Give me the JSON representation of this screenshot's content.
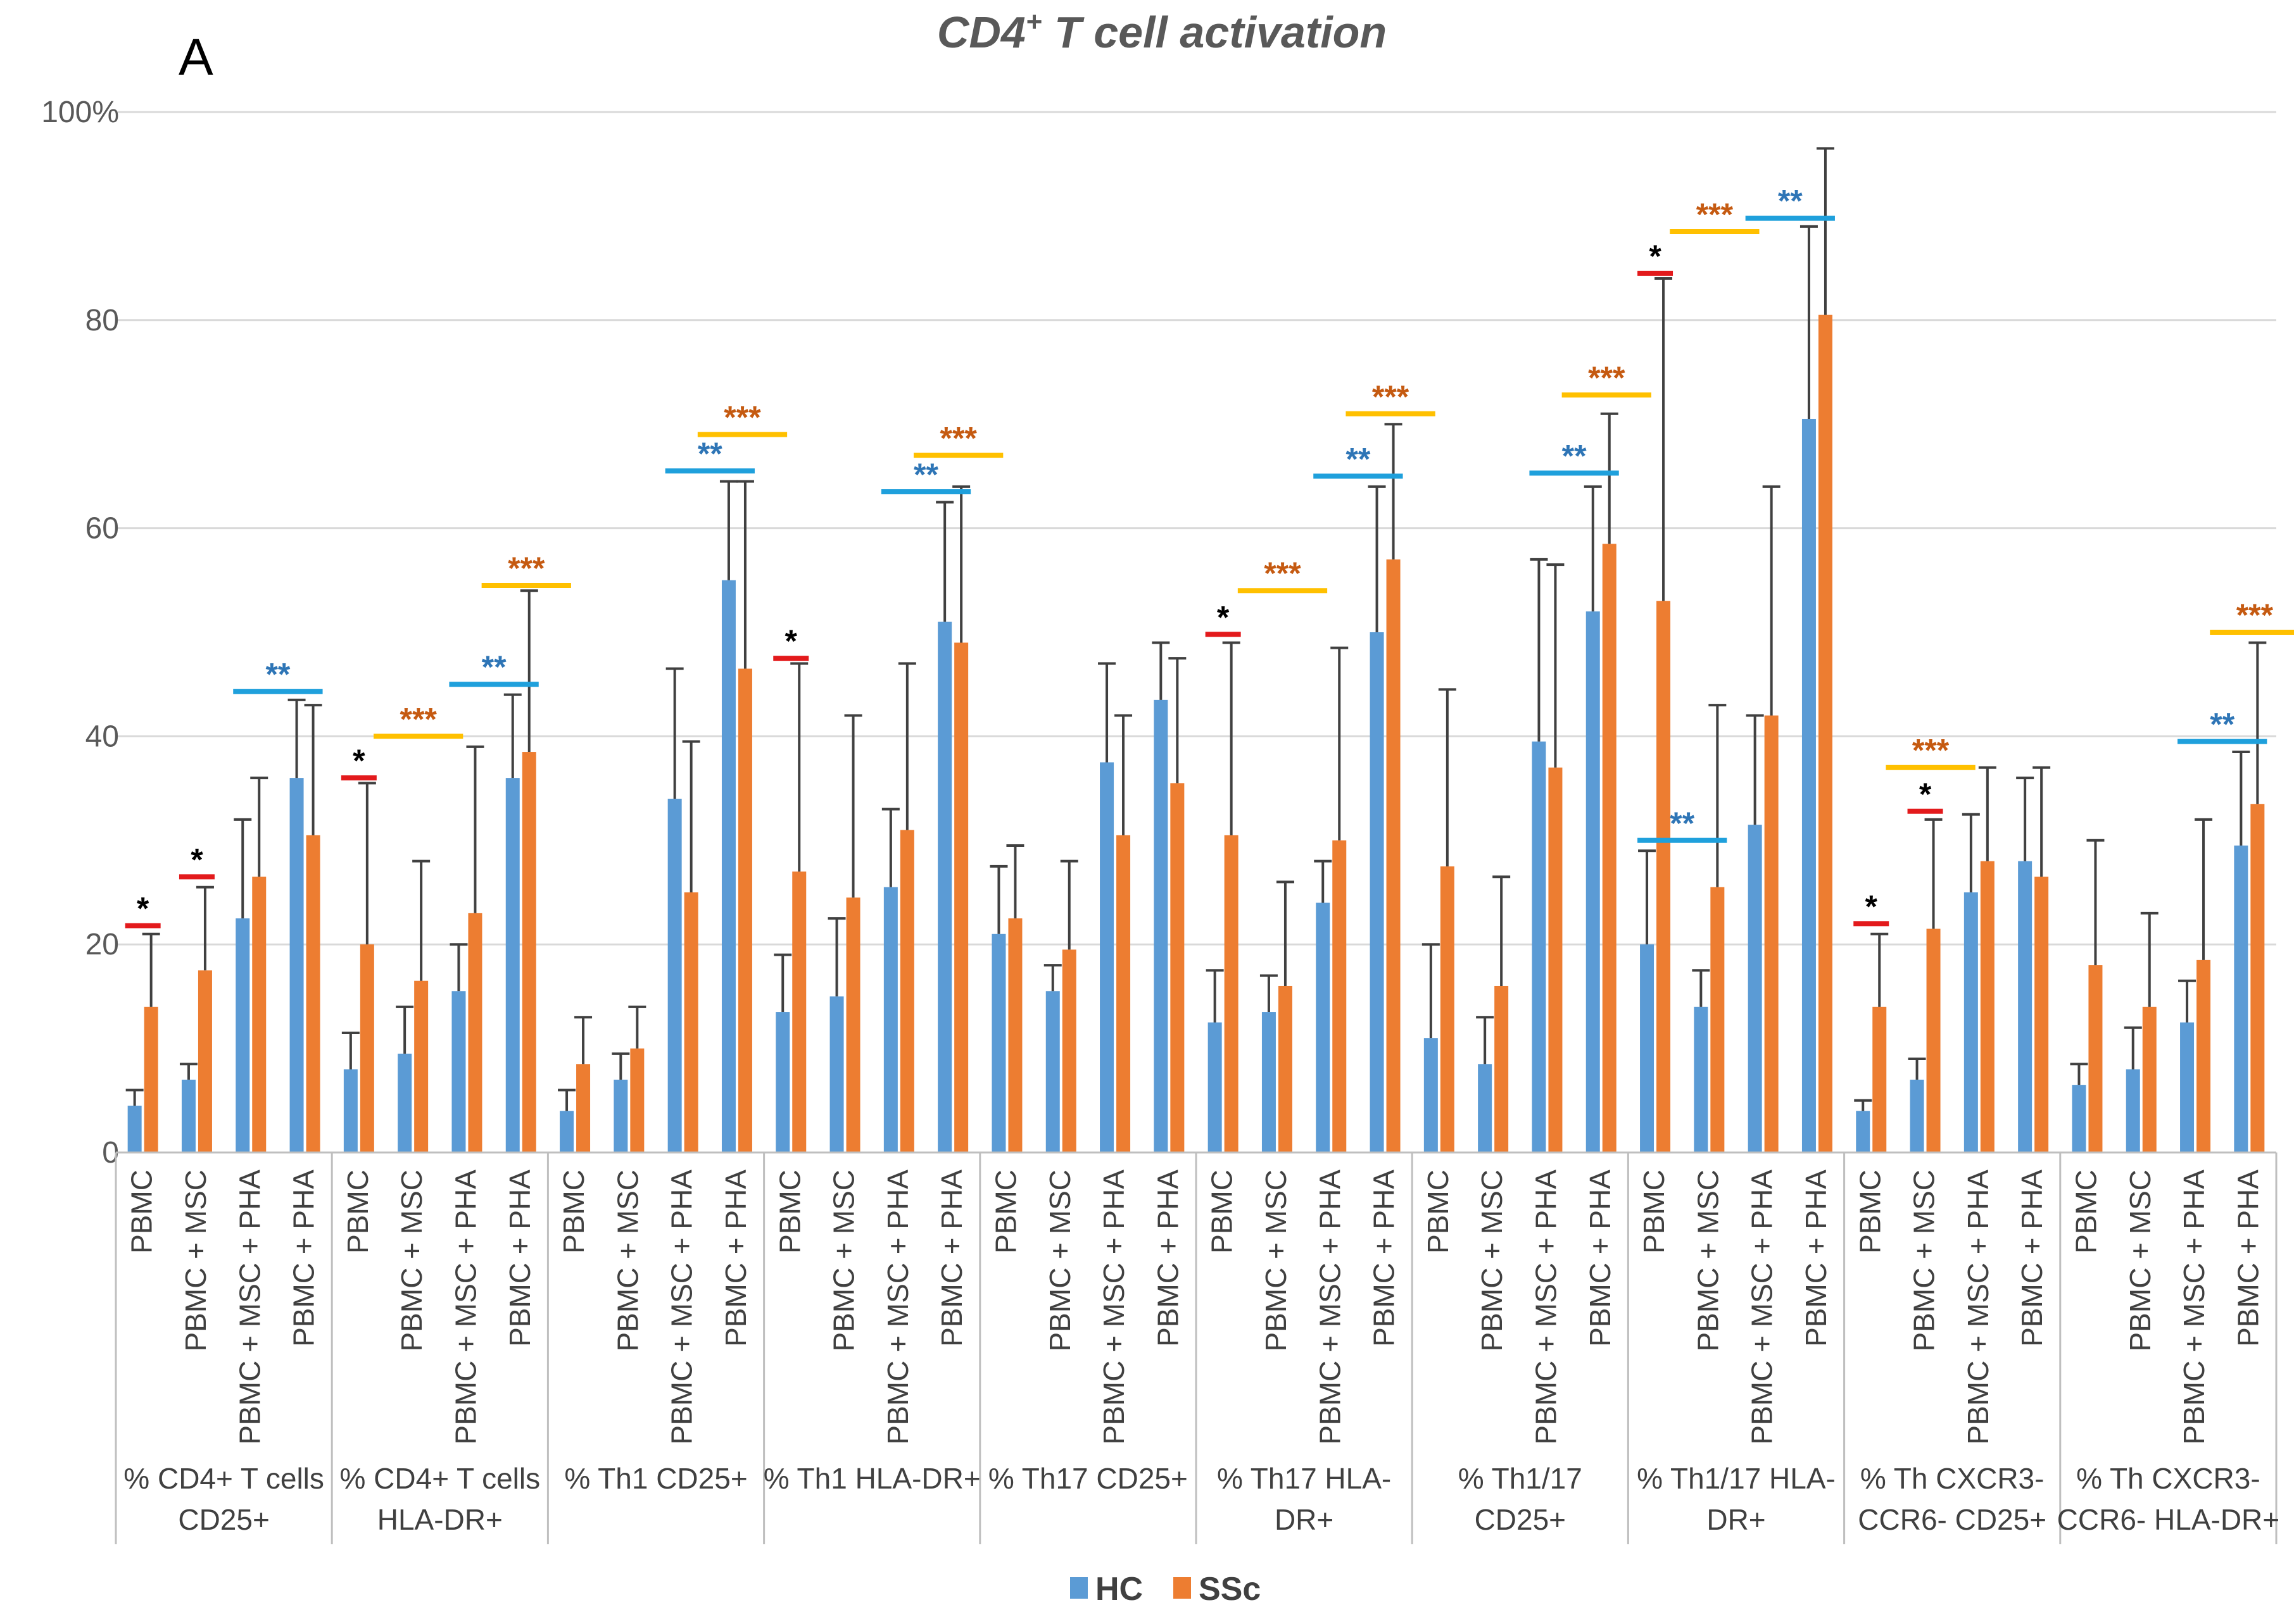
{
  "chart_data": {
    "type": "bar",
    "title": "CD4",
    "title_sup": "+",
    "title_rest": " T cell activation",
    "panel_label": "A",
    "ylim": [
      0,
      100
    ],
    "yticks": [
      {
        "value": 0,
        "label": "0"
      },
      {
        "value": 20,
        "label": "20"
      },
      {
        "value": 40,
        "label": "40"
      },
      {
        "value": 60,
        "label": "60"
      },
      {
        "value": 80,
        "label": "80"
      },
      {
        "value": 100,
        "label": "100%"
      }
    ],
    "series_names": [
      "HC",
      "SSc"
    ],
    "colors": {
      "HC": "#5B9BD5",
      "SSc": "#ED7D31",
      "error": "#404040",
      "grid": "#D9D9D9",
      "red": "#E31A1C",
      "yellow": "#FFC000",
      "blue": "#1FA0DC",
      "blue_star": "#2E75B6",
      "orange_star": "#C55A11",
      "black_star": "#000000"
    },
    "conditions": [
      "PBMC",
      "PBMC + MSC",
      "PBMC + MSC + PHA",
      "PBMC + PHA"
    ],
    "groups": [
      {
        "label": [
          "% CD4+ T cells",
          "CD25+"
        ],
        "hc": [
          4.5,
          7,
          22.5,
          36
        ],
        "hc_err": [
          6,
          8.5,
          32,
          43.5
        ],
        "ssc": [
          14,
          17.5,
          26.5,
          30.5
        ],
        "ssc_err": [
          21,
          25.5,
          36,
          43
        ]
      },
      {
        "label": [
          "% CD4+ T cells",
          "HLA-DR+"
        ],
        "hc": [
          8,
          9.5,
          15.5,
          36
        ],
        "hc_err": [
          11.5,
          14,
          20,
          44
        ],
        "ssc": [
          20,
          16.5,
          23,
          38.5
        ],
        "ssc_err": [
          35.5,
          28,
          39,
          54
        ]
      },
      {
        "label": [
          "% Th1 CD25+"
        ],
        "hc": [
          4,
          7,
          34,
          55
        ],
        "hc_err": [
          6,
          9.5,
          46.5,
          64.5
        ],
        "ssc": [
          8.5,
          10,
          25,
          46.5
        ],
        "ssc_err": [
          13,
          14,
          39.5,
          64.5
        ]
      },
      {
        "label": [
          "% Th1 HLA-DR+"
        ],
        "hc": [
          13.5,
          15,
          25.5,
          51
        ],
        "hc_err": [
          19,
          22.5,
          33,
          62.5
        ],
        "ssc": [
          27,
          24.5,
          31,
          49
        ],
        "ssc_err": [
          47,
          42,
          47,
          64
        ]
      },
      {
        "label": [
          "% Th17 CD25+"
        ],
        "hc": [
          21,
          15.5,
          37.5,
          43.5
        ],
        "hc_err": [
          27.5,
          18,
          47,
          49
        ],
        "ssc": [
          22.5,
          19.5,
          30.5,
          35.5
        ],
        "ssc_err": [
          29.5,
          28,
          42,
          47.5
        ]
      },
      {
        "label": [
          "% Th17 HLA-",
          "DR+"
        ],
        "hc": [
          12.5,
          13.5,
          24,
          50
        ],
        "hc_err": [
          17.5,
          17,
          28,
          64
        ],
        "ssc": [
          30.5,
          16,
          30,
          57
        ],
        "ssc_err": [
          49,
          26,
          48.5,
          70
        ]
      },
      {
        "label": [
          "% Th1/17",
          "CD25+"
        ],
        "hc": [
          11,
          8.5,
          39.5,
          52
        ],
        "hc_err": [
          20,
          13,
          57,
          64
        ],
        "ssc": [
          27.5,
          16,
          37,
          58.5
        ],
        "ssc_err": [
          44.5,
          26.5,
          56.5,
          71
        ]
      },
      {
        "label": [
          "% Th1/17 HLA-",
          "DR+"
        ],
        "hc": [
          20,
          14,
          31.5,
          70.5
        ],
        "hc_err": [
          29,
          17.5,
          42,
          89
        ],
        "ssc": [
          53,
          25.5,
          42,
          80.5
        ],
        "ssc_err": [
          84,
          43,
          64,
          96.5
        ]
      },
      {
        "label": [
          "% Th CXCR3-",
          "CCR6- CD25+"
        ],
        "hc": [
          4,
          7,
          25,
          28
        ],
        "hc_err": [
          5,
          9,
          32.5,
          36
        ],
        "ssc": [
          14,
          21.5,
          28,
          26.5
        ],
        "ssc_err": [
          21,
          32,
          37,
          37
        ]
      },
      {
        "label": [
          "% Th CXCR3-",
          "CCR6- HLA-DR+"
        ],
        "hc": [
          6.5,
          8,
          12.5,
          29.5
        ],
        "hc_err": [
          8.5,
          12,
          16.5,
          38.5
        ],
        "ssc": [
          18,
          14,
          18.5,
          33.5
        ],
        "ssc_err": [
          30,
          23,
          32,
          49
        ]
      }
    ],
    "annotations": [
      {
        "group": 0,
        "from": 0,
        "to": 0,
        "y": 21.8,
        "line": "red",
        "stars": "*",
        "star_color": "black_star"
      },
      {
        "group": 0,
        "from": 1,
        "to": 1,
        "y": 26.5,
        "line": "red",
        "stars": "*",
        "star_color": "black_star"
      },
      {
        "group": 0,
        "from": 2,
        "to": 3,
        "y": 44.3,
        "line": "blue",
        "stars": "**",
        "star_color": "blue_star"
      },
      {
        "group": 1,
        "from": 0,
        "to": 0,
        "y": 36,
        "line": "red",
        "stars": "*",
        "star_color": "black_star"
      },
      {
        "group": 1,
        "from": 0.6,
        "to": 1.6,
        "y": 40,
        "line": "yellow",
        "stars": "***",
        "star_color": "orange_star"
      },
      {
        "group": 1,
        "from": 2,
        "to": 3,
        "y": 45,
        "line": "blue",
        "stars": "**",
        "star_color": "blue_star"
      },
      {
        "group": 1,
        "from": 2.6,
        "to": 3.6,
        "y": 54.5,
        "line": "yellow",
        "stars": "***",
        "star_color": "orange_star"
      },
      {
        "group": 2,
        "from": 2,
        "to": 3,
        "y": 65.5,
        "line": "blue",
        "stars": "**",
        "star_color": "blue_star"
      },
      {
        "group": 2,
        "from": 2.6,
        "to": 3.6,
        "y": 69,
        "line": "yellow",
        "stars": "***",
        "star_color": "orange_star"
      },
      {
        "group": 3,
        "from": 0,
        "to": 0,
        "y": 47.5,
        "line": "red",
        "stars": "*",
        "star_color": "black_star"
      },
      {
        "group": 3,
        "from": 2,
        "to": 3,
        "y": 63.5,
        "line": "blue",
        "stars": "**",
        "star_color": "blue_star"
      },
      {
        "group": 3,
        "from": 2.6,
        "to": 3.6,
        "y": 67,
        "line": "yellow",
        "stars": "***",
        "star_color": "orange_star"
      },
      {
        "group": 5,
        "from": 0,
        "to": 0,
        "y": 49.8,
        "line": "red",
        "stars": "*",
        "star_color": "black_star"
      },
      {
        "group": 5,
        "from": 0.6,
        "to": 1.6,
        "y": 54,
        "line": "yellow",
        "stars": "***",
        "star_color": "orange_star"
      },
      {
        "group": 5,
        "from": 2,
        "to": 3,
        "y": 65,
        "line": "blue",
        "stars": "**",
        "star_color": "blue_star"
      },
      {
        "group": 5,
        "from": 2.6,
        "to": 3.6,
        "y": 71,
        "line": "yellow",
        "stars": "***",
        "star_color": "orange_star"
      },
      {
        "group": 6,
        "from": 2,
        "to": 3,
        "y": 65.3,
        "line": "blue",
        "stars": "**",
        "star_color": "blue_star"
      },
      {
        "group": 6,
        "from": 2.6,
        "to": 3.6,
        "y": 72.8,
        "line": "yellow",
        "stars": "***",
        "star_color": "orange_star"
      },
      {
        "group": 7,
        "from": 0,
        "to": 0,
        "y": 84.5,
        "line": "red",
        "stars": "*",
        "star_color": "black_star"
      },
      {
        "group": 7,
        "from": 0.6,
        "to": 1.6,
        "y": 88.5,
        "line": "yellow",
        "stars": "***",
        "star_color": "orange_star"
      },
      {
        "group": 7,
        "from": 0,
        "to": 1,
        "y": 30,
        "line": "blue",
        "stars": "**",
        "star_color": "blue_star"
      },
      {
        "group": 7,
        "from": 2,
        "to": 3,
        "y": 89.8,
        "line": "blue",
        "stars": "**",
        "star_color": "blue_star"
      },
      {
        "group": 8,
        "from": 0,
        "to": 0,
        "y": 22,
        "line": "red",
        "stars": "*",
        "star_color": "black_star"
      },
      {
        "group": 8,
        "from": 1,
        "to": 1,
        "y": 32.8,
        "line": "red",
        "stars": "*",
        "star_color": "black_star"
      },
      {
        "group": 8,
        "from": 0.6,
        "to": 1.6,
        "y": 37,
        "line": "yellow",
        "stars": "***",
        "star_color": "orange_star"
      },
      {
        "group": 9,
        "from": 2,
        "to": 3,
        "y": 39.5,
        "line": "blue",
        "stars": "**",
        "star_color": "blue_star"
      },
      {
        "group": 9,
        "from": 2.6,
        "to": 3.6,
        "y": 50,
        "line": "yellow",
        "stars": "***",
        "star_color": "orange_star"
      }
    ]
  }
}
